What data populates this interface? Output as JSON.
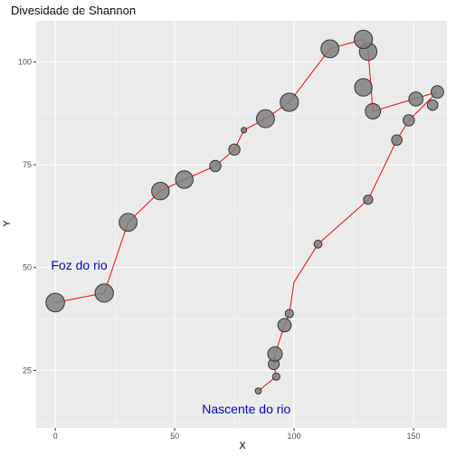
{
  "chart_data": {
    "type": "scatter",
    "title": "Divesidade de Shannon",
    "xlabel": "X",
    "ylabel": "Y",
    "xlim": [
      -8,
      164
    ],
    "ylim": [
      11,
      110
    ],
    "x_ticks": [
      0,
      50,
      100,
      150
    ],
    "y_ticks": [
      25,
      50,
      75,
      100
    ],
    "grid": true,
    "legend": "none",
    "colors": {
      "panel": "#ebebeb",
      "grid_major": "#ffffff",
      "point_fill": "#808080",
      "point_stroke": "#333333",
      "path_line": "#ff0000",
      "annotation": "#0000cd"
    },
    "points": [
      {
        "x": 85,
        "y": 20,
        "size": 1.5
      },
      {
        "x": 92.5,
        "y": 23.5,
        "size": 1.8
      },
      {
        "x": 91.5,
        "y": 26.5,
        "size": 2.6
      },
      {
        "x": 92,
        "y": 29,
        "size": 3.5
      },
      {
        "x": 96,
        "y": 36,
        "size": 3.2
      },
      {
        "x": 98,
        "y": 38.8,
        "size": 2.0
      },
      {
        "x": 110,
        "y": 55.7,
        "size": 1.9
      },
      {
        "x": 131,
        "y": 66.5,
        "size": 2.2
      },
      {
        "x": 143,
        "y": 81,
        "size": 2.5
      },
      {
        "x": 148,
        "y": 85.8,
        "size": 2.7
      },
      {
        "x": 158,
        "y": 89.5,
        "size": 2.5
      },
      {
        "x": 160,
        "y": 92.7,
        "size": 3.0
      },
      {
        "x": 151,
        "y": 91,
        "size": 3.4
      },
      {
        "x": 133,
        "y": 88,
        "size": 3.7
      },
      {
        "x": 129,
        "y": 93.8,
        "size": 4.2
      },
      {
        "x": 131,
        "y": 102.5,
        "size": 4.2
      },
      {
        "x": 129,
        "y": 105.5,
        "size": 4.4
      },
      {
        "x": 115,
        "y": 103.2,
        "size": 4.3
      },
      {
        "x": 98,
        "y": 90.2,
        "size": 4.4
      },
      {
        "x": 88,
        "y": 86.2,
        "size": 4.3
      },
      {
        "x": 79,
        "y": 83.4,
        "size": 1.3
      },
      {
        "x": 75,
        "y": 78.7,
        "size": 2.7
      },
      {
        "x": 67,
        "y": 74.7,
        "size": 2.7
      },
      {
        "x": 54,
        "y": 71.4,
        "size": 4.2
      },
      {
        "x": 44,
        "y": 68.6,
        "size": 4.2
      },
      {
        "x": 30.5,
        "y": 61,
        "size": 4.3
      },
      {
        "x": 20.5,
        "y": 43.8,
        "size": 4.4
      },
      {
        "x": 0,
        "y": 41.5,
        "size": 4.5
      }
    ],
    "path": [
      [
        85,
        20
      ],
      [
        92.5,
        23.5
      ],
      [
        91.5,
        26.5
      ],
      [
        92,
        29
      ],
      [
        96,
        36
      ],
      [
        98,
        38.8
      ],
      [
        100,
        46.5
      ],
      [
        110,
        55.7
      ],
      [
        131,
        66.5
      ],
      [
        143,
        81
      ],
      [
        148,
        85.8
      ],
      [
        160,
        92.7
      ],
      [
        133,
        88
      ],
      [
        131,
        102.5
      ],
      [
        129,
        105.5
      ],
      [
        115,
        103.2
      ],
      [
        98,
        90.2
      ],
      [
        88,
        86.2
      ],
      [
        79,
        83.4
      ],
      [
        75,
        78.7
      ],
      [
        67,
        74.7
      ],
      [
        54,
        71.4
      ],
      [
        44,
        68.6
      ],
      [
        30.5,
        61
      ],
      [
        20.5,
        43.8
      ],
      [
        0,
        41.5
      ]
    ],
    "annotations": [
      {
        "text": "Foz do rio",
        "x": 10,
        "y": 49.5
      },
      {
        "text": "Nascente do rio",
        "x": 80,
        "y": 14.5
      }
    ]
  }
}
